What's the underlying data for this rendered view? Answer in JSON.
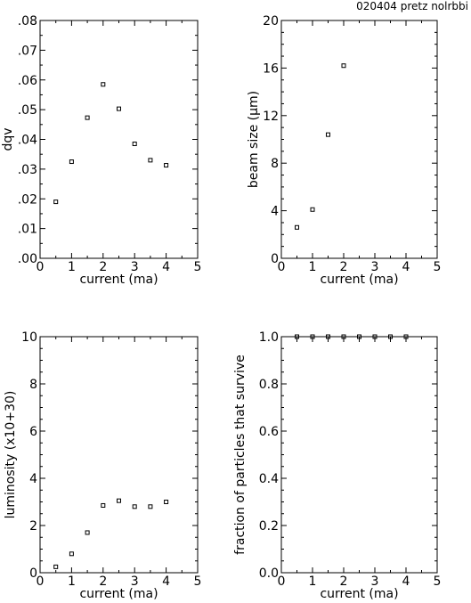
{
  "header": "020404 pretz nolrbbi",
  "chart_data": [
    {
      "type": "scatter",
      "xlabel": "current (ma)",
      "ylabel": "dqv",
      "xlim": [
        0,
        5
      ],
      "ylim": [
        0,
        0.08
      ],
      "xticks": [
        "0",
        "1",
        "2",
        "3",
        "4",
        "5"
      ],
      "yticks": [
        ".00",
        ".01",
        ".02",
        ".03",
        ".04",
        ".05",
        ".06",
        ".07",
        ".08"
      ],
      "x": [
        0.5,
        1.0,
        1.5,
        2.0,
        2.5,
        3.0,
        3.5,
        4.0
      ],
      "y": [
        0.019,
        0.0325,
        0.0473,
        0.0585,
        0.0503,
        0.0385,
        0.033,
        0.0313
      ]
    },
    {
      "type": "scatter",
      "xlabel": "current (ma)",
      "ylabel": "beam size (μm)",
      "xlim": [
        0,
        5
      ],
      "ylim": [
        0,
        20
      ],
      "xticks": [
        "0",
        "1",
        "2",
        "3",
        "4",
        "5"
      ],
      "yticks": [
        "0",
        "4",
        "8",
        "12",
        "16",
        "20"
      ],
      "x": [
        0.5,
        1.0,
        1.5,
        2.0
      ],
      "y": [
        2.6,
        4.1,
        10.4,
        16.2
      ]
    },
    {
      "type": "scatter",
      "xlabel": "current (ma)",
      "ylabel": "luminosity   (x10+30)",
      "xlim": [
        0,
        5
      ],
      "ylim": [
        0,
        10
      ],
      "xticks": [
        "0",
        "1",
        "2",
        "3",
        "4",
        "5"
      ],
      "yticks": [
        "0",
        "2",
        "4",
        "6",
        "8",
        "10"
      ],
      "x": [
        0.5,
        1.0,
        1.5,
        2.0,
        2.5,
        3.0,
        3.5,
        4.0
      ],
      "y": [
        0.25,
        0.8,
        1.7,
        2.85,
        3.05,
        2.8,
        2.8,
        3.0
      ]
    },
    {
      "type": "scatter",
      "xlabel": "current (ma)",
      "ylabel": "fraction of particles that survive",
      "xlim": [
        0,
        5
      ],
      "ylim": [
        0,
        1
      ],
      "xticks": [
        "0",
        "1",
        "2",
        "3",
        "4",
        "5"
      ],
      "yticks": [
        "0.0",
        "0.2",
        "0.4",
        "0.6",
        "0.8",
        "1.0"
      ],
      "x": [
        0.5,
        1.0,
        1.5,
        2.0,
        2.5,
        3.0,
        3.5,
        4.0
      ],
      "y": [
        1.0,
        1.0,
        1.0,
        1.0,
        1.0,
        1.0,
        1.0,
        1.0
      ],
      "error_bars": true
    }
  ]
}
